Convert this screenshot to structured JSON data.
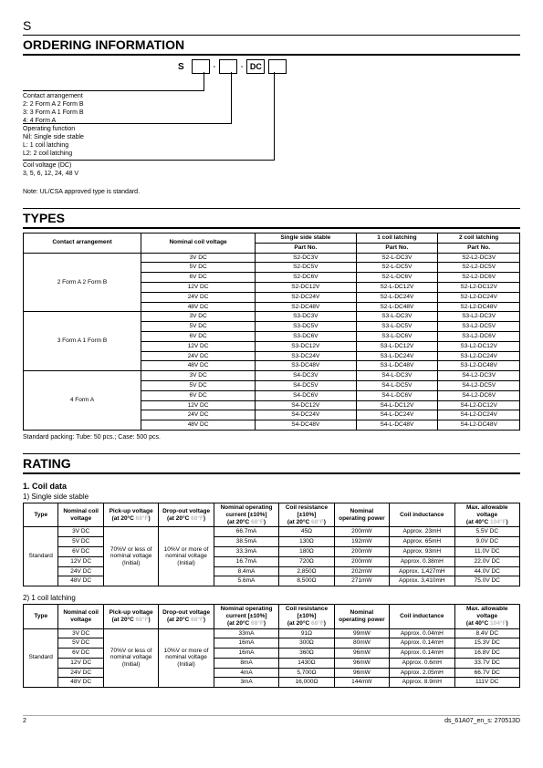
{
  "topLetter": "S",
  "sections": {
    "ordering": "ORDERING INFORMATION",
    "types": "TYPES",
    "rating": "RATING"
  },
  "ordering": {
    "prefix": "S",
    "box1": "",
    "box2": "",
    "box3": "DC",
    "box4": "",
    "dash": "-",
    "contactArrangement": {
      "title": "Contact arrangement",
      "lines": [
        "2: 2 Form A 2 Form B",
        "3: 3 Form A 1 Form B",
        "4: 4 Form A"
      ]
    },
    "operatingFunction": {
      "title": "Operating function",
      "lines": [
        "Nil: Single side stable",
        "L:   1 coil latching",
        "L2: 2 coil latching"
      ]
    },
    "coilVoltage": {
      "title": "Coil voltage (DC)",
      "lines": [
        "3, 5, 6, 12, 24, 48 V"
      ]
    },
    "note": "Note:  UL/CSA approved type is standard."
  },
  "types": {
    "headers": [
      "Contact arrangement",
      "Nominal coil voltage",
      "Single side stable",
      "1 coil latching",
      "2 coil latching"
    ],
    "subheader": "Part No.",
    "groups": [
      {
        "arrangement": "2 Form A 2 Form B",
        "rows": [
          [
            "3V DC",
            "S2-DC3V",
            "S2-L-DC3V",
            "S2-L2-DC3V"
          ],
          [
            "5V DC",
            "S2-DC5V",
            "S2-L-DC5V",
            "S2-L2-DC5V"
          ],
          [
            "6V DC",
            "S2-DC6V",
            "S2-L-DC6V",
            "S2-L2-DC6V"
          ],
          [
            "12V DC",
            "S2-DC12V",
            "S2-L-DC12V",
            "S2-L2-DC12V"
          ],
          [
            "24V DC",
            "S2-DC24V",
            "S2-L-DC24V",
            "S2-L2-DC24V"
          ],
          [
            "48V DC",
            "S2-DC48V",
            "S2-L-DC48V",
            "S2-L2-DC48V"
          ]
        ]
      },
      {
        "arrangement": "3 Form A 1 Form B",
        "rows": [
          [
            "3V DC",
            "S3-DC3V",
            "S3-L-DC3V",
            "S3-L2-DC3V"
          ],
          [
            "5V DC",
            "S3-DC5V",
            "S3-L-DC5V",
            "S3-L2-DC5V"
          ],
          [
            "6V DC",
            "S3-DC6V",
            "S3-L-DC6V",
            "S3-L2-DC6V"
          ],
          [
            "12V DC",
            "S3-DC12V",
            "S3-L-DC12V",
            "S3-L2-DC12V"
          ],
          [
            "24V DC",
            "S3-DC24V",
            "S3-L-DC24V",
            "S3-L2-DC24V"
          ],
          [
            "48V DC",
            "S3-DC48V",
            "S3-L-DC48V",
            "S3-L2-DC48V"
          ]
        ]
      },
      {
        "arrangement": "4 Form A",
        "rows": [
          [
            "3V DC",
            "S4-DC3V",
            "S4-L-DC3V",
            "S4-L2-DC3V"
          ],
          [
            "5V DC",
            "S4-DC5V",
            "S4-L-DC5V",
            "S4-L2-DC5V"
          ],
          [
            "6V DC",
            "S4-DC6V",
            "S4-L-DC6V",
            "S4-L2-DC6V"
          ],
          [
            "12V DC",
            "S4-DC12V",
            "S4-L-DC12V",
            "S4-L2-DC12V"
          ],
          [
            "24V DC",
            "S4-DC24V",
            "S4-L-DC24V",
            "S4-L2-DC24V"
          ],
          [
            "48V DC",
            "S4-DC48V",
            "S4-L-DC48V",
            "S4-L2-DC48V"
          ]
        ]
      }
    ],
    "packingNote": "Standard packing: Tube: 50 pcs.; Case: 500 pcs."
  },
  "rating": {
    "coilDataTitle": "1. Coil data",
    "singleSide": {
      "title": "1) Single side stable",
      "headers": [
        "Type",
        "Nominal coil voltage",
        "Pick-up voltage",
        "Drop-out voltage",
        "Nominal operating current [±10%]",
        "Coil resistance [±10%]",
        "Nominal operating power",
        "Coil inductance",
        "Max. allowable voltage"
      ],
      "tempLabel20": "(at 20°C ",
      "tempF20": "68°F",
      "tempEnd": ")",
      "tempLabel40": "(at 40°C ",
      "tempF40": "104°F",
      "typeLabel": "Standard",
      "pickup": "70%V or less of nominal voltage (Initial)",
      "dropout": "10%V or more of nominal voltage (Initial)",
      "rows": [
        [
          "3V DC",
          "66.7mA",
          "45Ω",
          "200mW",
          "Approx. 23mH",
          "5.5V DC"
        ],
        [
          "5V DC",
          "38.5mA",
          "130Ω",
          "192mW",
          "Approx. 65mH",
          "9.0V DC"
        ],
        [
          "6V DC",
          "33.3mA",
          "180Ω",
          "200mW",
          "Approx. 93mH",
          "11.0V DC"
        ],
        [
          "12V DC",
          "16.7mA",
          "720Ω",
          "200mW",
          "Approx. 0.38mH",
          "22.0V DC"
        ],
        [
          "24V DC",
          "8.4mA",
          "2,850Ω",
          "202mW",
          "Approx. 1,427mH",
          "44.0V DC"
        ],
        [
          "48V DC",
          "5.6mA",
          "8,500Ω",
          "271mW",
          "Approx. 3,410mH",
          "75.0V DC"
        ]
      ]
    },
    "latching1": {
      "title": "2) 1 coil latching",
      "typeLabel": "Standard",
      "rows": [
        [
          "3V DC",
          "33mA",
          "91Ω",
          "99mW",
          "Approx. 0.04mH",
          "8.4V DC"
        ],
        [
          "5V DC",
          "16mA",
          "300Ω",
          "80mW",
          "Approx. 0.14mH",
          "15.3V DC"
        ],
        [
          "6V DC",
          "16mA",
          "360Ω",
          "96mW",
          "Approx. 0.14mH",
          "16.8V DC"
        ],
        [
          "12V DC",
          "8mA",
          "1430Ω",
          "96mW",
          "Approx. 0.6mH",
          "33.7V DC"
        ],
        [
          "24V DC",
          "4mA",
          "5,700Ω",
          "96mW",
          "Approx. 2.05mH",
          "66.7V DC"
        ],
        [
          "48V DC",
          "3mA",
          "16,000Ω",
          "144mW",
          "Approx. 8.9mH",
          "111V DC"
        ]
      ]
    }
  },
  "footer": {
    "page": "2",
    "doc": "ds_61A07_en_s: 270513D"
  }
}
